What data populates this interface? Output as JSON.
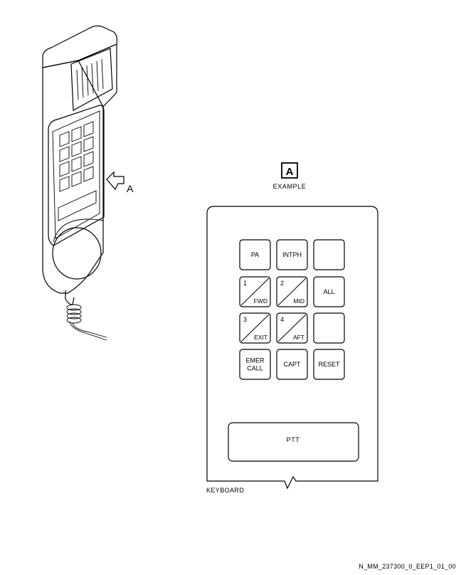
{
  "callout": {
    "label": "A"
  },
  "view": {
    "badge": "A",
    "caption": "EXAMPLE"
  },
  "keyboard": {
    "label": "KEYBOARD",
    "keys": [
      {
        "id": "pa",
        "type": "single",
        "lines": [
          "PA"
        ]
      },
      {
        "id": "intph",
        "type": "single",
        "lines": [
          "INTPH"
        ]
      },
      {
        "id": "blank-1",
        "type": "single",
        "lines": []
      },
      {
        "id": "1-fwd",
        "type": "split",
        "top": "1",
        "bottom": "FWD"
      },
      {
        "id": "2-mid",
        "type": "split",
        "top": "2",
        "bottom": "MID"
      },
      {
        "id": "all",
        "type": "single",
        "lines": [
          "ALL"
        ]
      },
      {
        "id": "3-exit",
        "type": "split",
        "top": "3",
        "bottom": "EXIT"
      },
      {
        "id": "4-aft",
        "type": "split",
        "top": "4",
        "bottom": "AFT"
      },
      {
        "id": "blank-2",
        "type": "single",
        "lines": []
      },
      {
        "id": "emer-call",
        "type": "single",
        "lines": [
          "EMER",
          "CALL"
        ]
      },
      {
        "id": "capt",
        "type": "single",
        "lines": [
          "CAPT"
        ]
      },
      {
        "id": "reset",
        "type": "single",
        "lines": [
          "RESET"
        ]
      }
    ],
    "ptt_label": "PTT"
  },
  "figure_id": "N_MM_237300_0_EEP1_01_00"
}
